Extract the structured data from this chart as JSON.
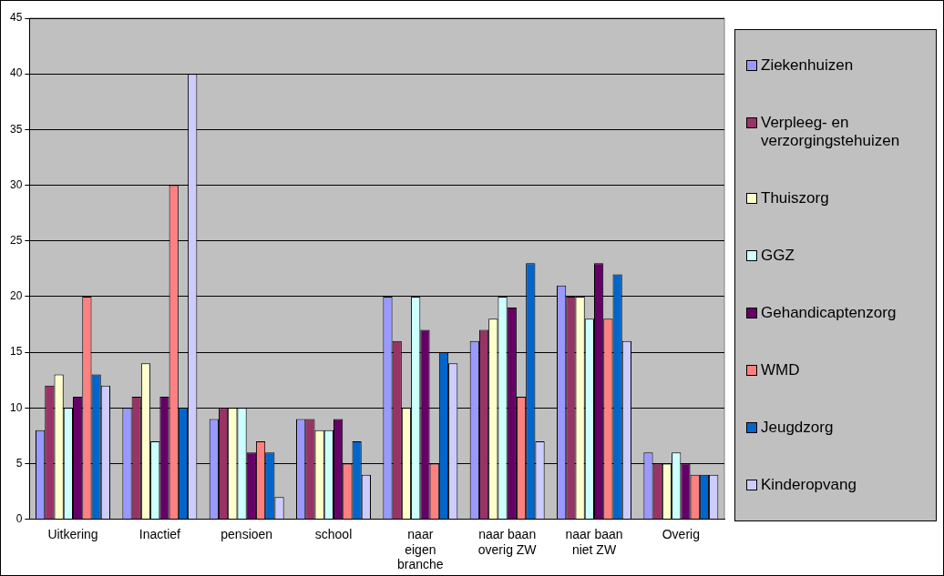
{
  "chart_data": {
    "type": "bar",
    "categories": [
      "Uitkering",
      "Inactief",
      "pensioen",
      "school",
      "naar eigen branche",
      "naar baan overig ZW",
      "naar baan niet ZW",
      "Overig"
    ],
    "series": [
      {
        "name": "Ziekenhuizen",
        "color": "#9999ff",
        "values": [
          8,
          10,
          9,
          9,
          20,
          16,
          21,
          6
        ]
      },
      {
        "name": "Verpleeg- en verzorgingstehuizen",
        "color": "#993366",
        "values": [
          12,
          11,
          10,
          9,
          16,
          17,
          20,
          5
        ]
      },
      {
        "name": "Thuiszorg",
        "color": "#ffffcc",
        "values": [
          13,
          14,
          10,
          8,
          10,
          18,
          20,
          5
        ]
      },
      {
        "name": "GGZ",
        "color": "#ccffff",
        "values": [
          10,
          7,
          10,
          8,
          20,
          20,
          18,
          6
        ]
      },
      {
        "name": "Gehandicaptenzorg",
        "color": "#660066",
        "values": [
          11,
          11,
          6,
          9,
          17,
          19,
          23,
          5
        ]
      },
      {
        "name": "WMD",
        "color": "#ff8080",
        "values": [
          20,
          30,
          7,
          5,
          5,
          11,
          18,
          4
        ]
      },
      {
        "name": "Jeugdzorg",
        "color": "#0066cc",
        "values": [
          13,
          10,
          6,
          7,
          15,
          23,
          22,
          4
        ]
      },
      {
        "name": "Kinderopvang",
        "color": "#ccccff",
        "values": [
          12,
          40,
          2,
          4,
          14,
          7,
          16,
          4
        ]
      }
    ],
    "ylim": [
      0,
      45
    ],
    "yticks": [
      0,
      5,
      10,
      15,
      20,
      25,
      30,
      35,
      40,
      45
    ],
    "grid": "y",
    "legend": "right"
  }
}
